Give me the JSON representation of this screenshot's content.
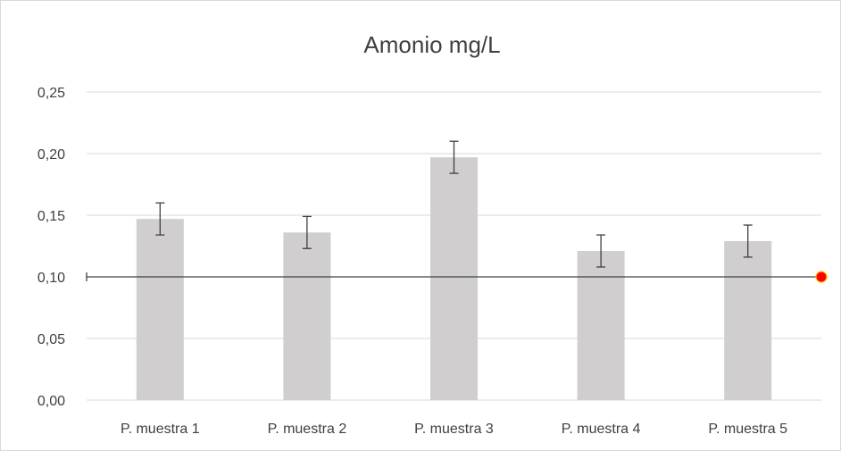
{
  "chart_data": {
    "type": "bar",
    "title": "Amonio mg/L",
    "xlabel": "",
    "ylabel": "",
    "categories": [
      "P. muestra  1",
      "P. muestra 2",
      "P. muestra 3",
      "P. muestra 4",
      "P. muestra 5"
    ],
    "series": [
      {
        "values": [
          0.147,
          0.136,
          0.197,
          0.121,
          0.129
        ],
        "error": [
          0.013,
          0.013,
          0.013,
          0.013,
          0.013
        ],
        "color": "#d0cece"
      }
    ],
    "reference_line": {
      "value": 0.1,
      "color": "#404040",
      "marker_color": "#ff0000"
    },
    "ylim": [
      0,
      0.25
    ],
    "yticks": [
      "0,00",
      "0,05",
      "0,10",
      "0,15",
      "0,20",
      "0,25"
    ],
    "grid": true,
    "legend": "none"
  }
}
